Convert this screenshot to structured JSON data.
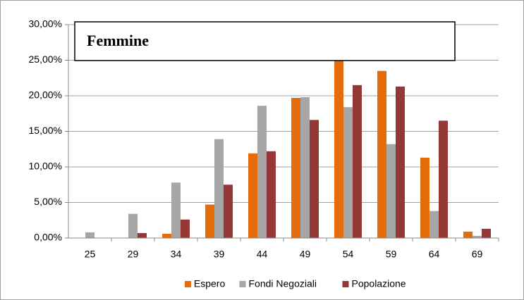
{
  "chart_data": {
    "type": "bar",
    "title": "Femmine",
    "categories": [
      "25",
      "29",
      "34",
      "39",
      "44",
      "49",
      "54",
      "59",
      "64",
      "69"
    ],
    "series": [
      {
        "name": "Espero",
        "color": "#e46c0a",
        "values": [
          0,
          0,
          0.6,
          4.7,
          11.9,
          19.7,
          25.0,
          23.5,
          11.3,
          0.9
        ]
      },
      {
        "name": "Fondi Negoziali",
        "color": "#a6a6a6",
        "values": [
          0.8,
          3.4,
          7.8,
          13.9,
          18.6,
          19.8,
          18.4,
          13.2,
          3.8,
          0.3
        ]
      },
      {
        "name": "Popolazione",
        "color": "#953735",
        "values": [
          0,
          0.7,
          2.6,
          7.5,
          12.2,
          16.6,
          21.5,
          21.3,
          16.5,
          1.3
        ]
      }
    ],
    "ylim": [
      0,
      30
    ],
    "yticks": [
      {
        "value": 0,
        "label": "0,00%"
      },
      {
        "value": 5,
        "label": "5,00%"
      },
      {
        "value": 10,
        "label": "10,00%"
      },
      {
        "value": 15,
        "label": "15,00%"
      },
      {
        "value": 20,
        "label": "20,00%"
      },
      {
        "value": 25,
        "label": "25,00%"
      },
      {
        "value": 30,
        "label": "30,00%"
      }
    ],
    "grid": true,
    "legend": "bottom"
  }
}
